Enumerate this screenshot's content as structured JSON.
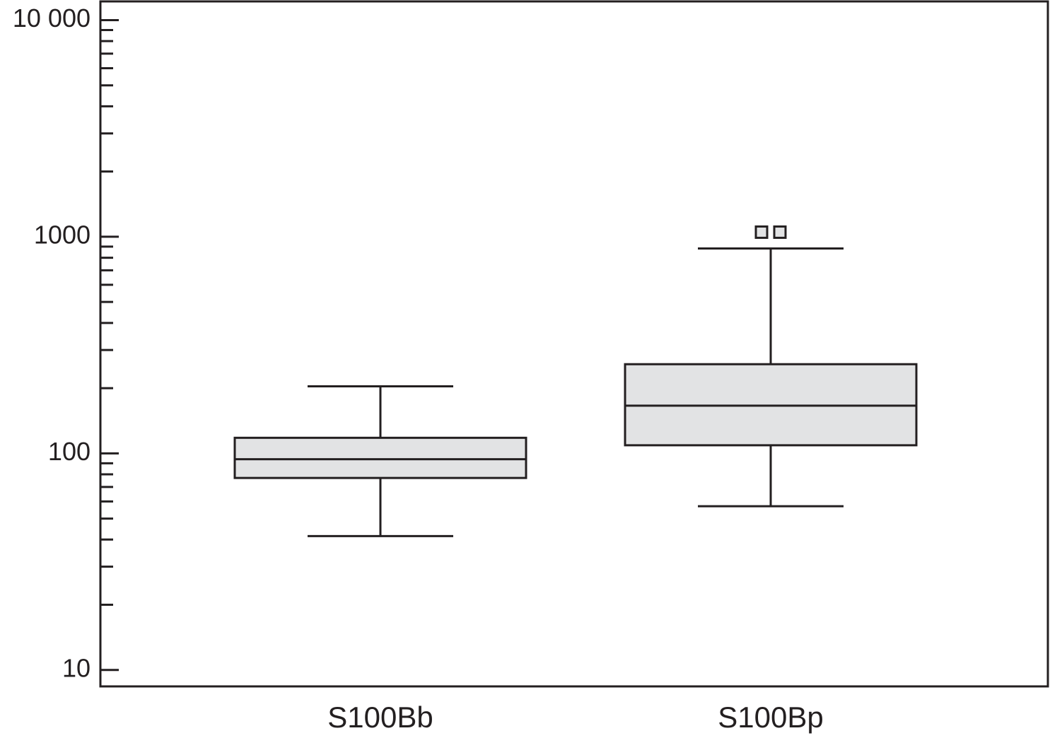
{
  "chart_data": {
    "type": "box",
    "categories": [
      "S100Bb",
      "S100Bp"
    ],
    "boxes": [
      {
        "whisker_low": 41.5,
        "q1": 77,
        "median": 94,
        "q3": 118,
        "whisker_high": 204,
        "outliers": []
      },
      {
        "whisker_low": 57,
        "q1": 109,
        "median": 166,
        "q3": 258,
        "whisker_high": 883,
        "outliers": [
          1050,
          1050
        ]
      }
    ],
    "fill": "#e2e3e4",
    "stroke": "#231f20",
    "log_scale": true,
    "ylim": [
      8.4,
      12200
    ],
    "yticks": [
      10,
      100,
      1000,
      {
        "value": 10000,
        "label": "10 000"
      }
    ],
    "minor_yticks": [
      20,
      30,
      40,
      50,
      60,
      70,
      80,
      90,
      200,
      300,
      400,
      500,
      600,
      700,
      800,
      900,
      2000,
      3000,
      4000,
      5000,
      6000,
      7000,
      8000,
      9000
    ]
  }
}
